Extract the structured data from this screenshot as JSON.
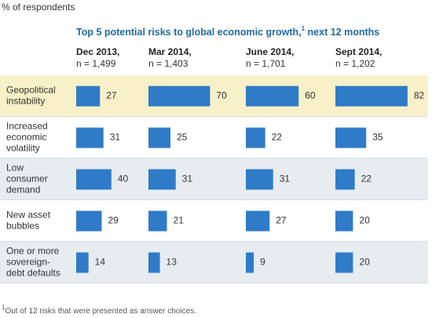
{
  "chart_data": {
    "type": "bar",
    "orientation": "horizontal",
    "note": "% of respondents",
    "title": {
      "text": "Top 5 potential risks to global economic growth,",
      "ref": "1",
      "tail": " next 12 months"
    },
    "categories": [
      "Geopolitical\ninstability",
      "Increased\neconomic\nvolatility",
      "Low\nconsumer\ndemand",
      "New asset\nbubbles",
      "One or more\nsovereign-\ndebt defaults"
    ],
    "series": [
      {
        "name": "Dec 2013,",
        "n": "n = 1,499",
        "color": "#2f7bc8",
        "values": [
          27,
          31,
          40,
          29,
          14
        ]
      },
      {
        "name": "Mar 2014,",
        "n": "n = 1,403",
        "color": "#2f7bc8",
        "values": [
          70,
          25,
          31,
          21,
          13
        ]
      },
      {
        "name": "June 2014,",
        "n": "n = 1,701",
        "color": "#2f7bc8",
        "values": [
          60,
          22,
          31,
          27,
          9
        ]
      },
      {
        "name": "Sept 2014,",
        "n": "n = 1,202",
        "color": "#2f7bc8",
        "values": [
          82,
          35,
          22,
          20,
          20
        ]
      }
    ],
    "footnote": {
      "ref": "1",
      "text": "Out of 12 risks that were presented as answer choices."
    }
  }
}
